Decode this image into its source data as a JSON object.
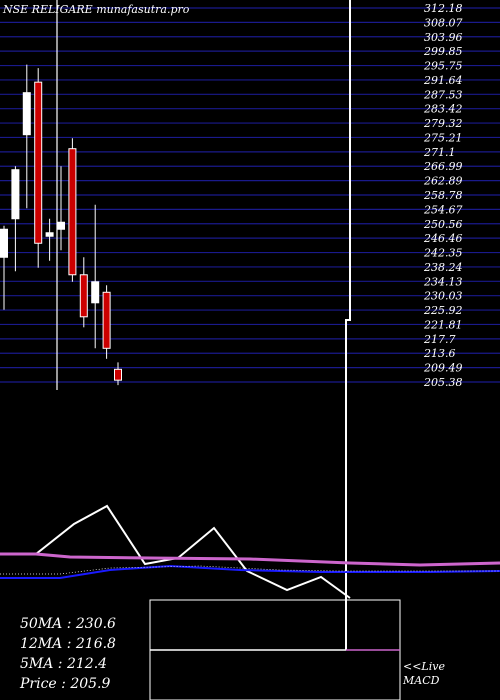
{
  "title": "NSE RELIGARE munafasutra.pro",
  "chart_data": {
    "type": "candlestick",
    "y_ticks": [
      "312.18",
      "308.07",
      "303.96",
      "299.85",
      "295.75",
      "291.64",
      "287.53",
      "283.42",
      "279.32",
      "275.21",
      "271.1",
      "266.99",
      "262.89",
      "258.78",
      "254.67",
      "250.56",
      "246.46",
      "242.35",
      "238.24",
      "234.13",
      "230.03",
      "225.92",
      "221.81",
      "217.7",
      "213.6",
      "209.49",
      "205.38"
    ],
    "ylim": [
      205.38,
      312.18
    ],
    "candles": [
      {
        "open": 241,
        "high": 250,
        "low": 226,
        "close": 249,
        "color": "white"
      },
      {
        "open": 252,
        "high": 267,
        "low": 237,
        "close": 266,
        "color": "white"
      },
      {
        "open": 276,
        "high": 296,
        "low": 255,
        "close": 288,
        "color": "white"
      },
      {
        "open": 291,
        "high": 295,
        "low": 238,
        "close": 245,
        "color": "red"
      },
      {
        "open": 247,
        "high": 252,
        "low": 240,
        "close": 248,
        "color": "white"
      },
      {
        "open": 249,
        "high": 267,
        "low": 243,
        "close": 251,
        "color": "white"
      },
      {
        "open": 272,
        "high": 275,
        "low": 234,
        "close": 236,
        "color": "red"
      },
      {
        "open": 236,
        "high": 241,
        "low": 221,
        "close": 224,
        "color": "red"
      },
      {
        "open": 228,
        "high": 256,
        "low": 215,
        "close": 234,
        "color": "white"
      },
      {
        "open": 231,
        "high": 233,
        "low": 212,
        "close": 215,
        "color": "red"
      },
      {
        "open": 209,
        "high": 211,
        "low": 204.5,
        "close": 205.9,
        "color": "red"
      }
    ],
    "moving_averages": {
      "ma50": "50MA : 230.6",
      "ma12": "12MA : 216.8",
      "ma5": "5MA : 212.4",
      "price": "Price   : 205.9"
    },
    "macd_label_line1": "<<Live",
    "macd_label_line2": "MACD"
  },
  "colors": {
    "background": "#000000",
    "grid": "#1a1a8c",
    "bull": "#ffffff",
    "bear": "#cc0000",
    "macd": "#ffffff",
    "signal": "#cc66cc",
    "ma_line": "#1a1aff"
  }
}
